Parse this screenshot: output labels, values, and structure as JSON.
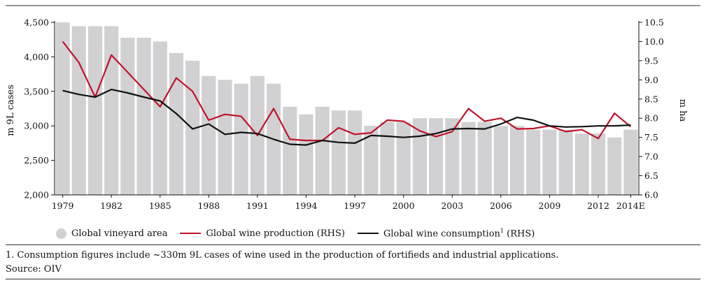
{
  "chart_data": {
    "type": "bar",
    "x": [
      "1979",
      "1980",
      "1981",
      "1982",
      "1983",
      "1984",
      "1985",
      "1986",
      "1987",
      "1988",
      "1989",
      "1990",
      "1991",
      "1992",
      "1993",
      "1994",
      "1995",
      "1996",
      "1997",
      "1998",
      "1999",
      "2000",
      "2001",
      "2002",
      "2003",
      "2004",
      "2005",
      "2006",
      "2007",
      "2008",
      "2009",
      "2010",
      "2011",
      "2012",
      "2013",
      "2014E"
    ],
    "x_tick_labels": [
      "1979",
      "1982",
      "1985",
      "1988",
      "1991",
      "1994",
      "1997",
      "2000",
      "2003",
      "2006",
      "2009",
      "2012",
      "2014E"
    ],
    "left_axis": {
      "label": "m 9L cases",
      "ylim": [
        2000,
        4500
      ],
      "ticks": [
        "2,000",
        "2,500",
        "3,000",
        "3,500",
        "4,000",
        "4,500"
      ],
      "tick_values": [
        2000,
        2500,
        3000,
        3500,
        4000,
        4500
      ]
    },
    "right_axis": {
      "label": "m ha",
      "ylim": [
        6.0,
        10.5
      ],
      "ticks": [
        "6.0",
        "6.5",
        "7.0",
        "7.5",
        "8.0",
        "8.5",
        "9.0",
        "9.5",
        "10.0",
        "10.5"
      ],
      "tick_values": [
        6.0,
        6.5,
        7.0,
        7.5,
        8.0,
        8.5,
        9.0,
        9.5,
        10.0,
        10.5
      ]
    },
    "series": [
      {
        "name": "Global vineyard area",
        "kind": "bar",
        "axis": "right",
        "color": "#d1d1d3",
        "values": [
          10.5,
          10.4,
          10.4,
          10.4,
          10.1,
          10.1,
          10.0,
          9.7,
          9.5,
          9.1,
          9.0,
          8.9,
          9.1,
          8.9,
          8.3,
          8.1,
          8.3,
          8.2,
          8.2,
          7.8,
          7.9,
          7.9,
          8.0,
          8.0,
          8.0,
          7.9,
          7.9,
          7.8,
          7.8,
          7.7,
          7.7,
          7.7,
          7.6,
          7.6,
          7.5,
          7.7
        ]
      },
      {
        "name": "Global wine production (RHS)",
        "kind": "line",
        "axis": "right",
        "color": "#c0142c",
        "values": [
          10.0,
          9.45,
          8.55,
          9.65,
          9.2,
          8.75,
          8.3,
          9.05,
          8.7,
          7.95,
          8.1,
          8.05,
          7.55,
          8.25,
          7.45,
          7.42,
          7.42,
          7.75,
          7.58,
          7.62,
          7.95,
          7.92,
          7.67,
          7.52,
          7.65,
          8.25,
          7.92,
          8.0,
          7.72,
          7.73,
          7.8,
          7.65,
          7.7,
          7.47,
          8.13,
          7.78
        ]
      },
      {
        "name": "Global wine consumption",
        "kind": "line",
        "axis": "right",
        "color": "#111111",
        "values": [
          8.72,
          8.62,
          8.55,
          8.75,
          8.66,
          8.55,
          8.45,
          8.12,
          7.72,
          7.85,
          7.58,
          7.63,
          7.6,
          7.45,
          7.32,
          7.3,
          7.42,
          7.37,
          7.35,
          7.55,
          7.53,
          7.5,
          7.53,
          7.6,
          7.72,
          7.73,
          7.72,
          7.85,
          8.02,
          7.95,
          7.8,
          7.77,
          7.78,
          7.8,
          7.8,
          7.82
        ]
      }
    ]
  },
  "legend": {
    "area": "Global vineyard area",
    "production": "Global wine production (RHS)",
    "consumption": "Global wine consumption",
    "consumption_sup": "1",
    "consumption_suffix": " (RHS)"
  },
  "footnote": "1. Consumption figures include ~330m 9L cases of wine used in the production of fortifieds and industrial applications.",
  "source": "Source: OIV"
}
